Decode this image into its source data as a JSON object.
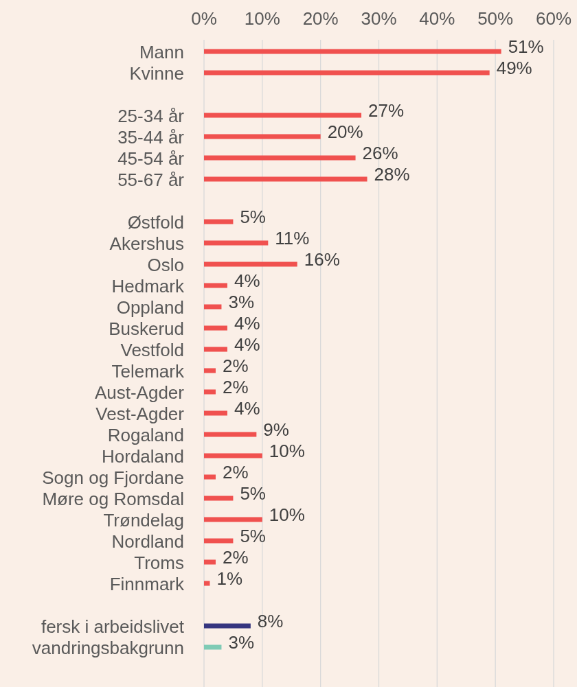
{
  "chart_data": {
    "type": "bar",
    "orientation": "horizontal",
    "categories": [
      "Mann",
      "Kvinne",
      null,
      "25-34 år",
      "35-44 år",
      "45-54 år",
      "55-67 år",
      null,
      "Østfold",
      "Akershus",
      "Oslo",
      "Hedmark",
      "Oppland",
      "Buskerud",
      "Vestfold",
      "Telemark",
      "Aust-Agder",
      "Vest-Agder",
      "Rogaland",
      "Hordaland",
      "Sogn og Fjordane",
      "Møre og Romsdal",
      "Trøndelag",
      "Nordland",
      "Troms",
      "Finnmark",
      null,
      "fersk i arbeidslivet",
      "vandringsbakgrunn"
    ],
    "values": [
      51,
      49,
      null,
      27,
      20,
      26,
      28,
      null,
      5,
      11,
      16,
      4,
      3,
      4,
      4,
      2,
      2,
      4,
      9,
      10,
      2,
      5,
      10,
      5,
      2,
      1,
      null,
      8,
      3
    ],
    "value_labels": [
      "51%",
      "49%",
      null,
      "27%",
      "20%",
      "26%",
      "28%",
      null,
      "5%",
      "11%",
      "16%",
      "4%",
      "3%",
      "4%",
      "4%",
      "2%",
      "2%",
      "4%",
      "9%",
      "10%",
      "2%",
      "5%",
      "10%",
      "5%",
      "2%",
      "1%",
      null,
      "8%",
      "3%"
    ],
    "colors": [
      "#f0514f",
      "#f0514f",
      null,
      "#f0514f",
      "#f0514f",
      "#f0514f",
      "#f0514f",
      null,
      "#f0514f",
      "#f0514f",
      "#f0514f",
      "#f0514f",
      "#f0514f",
      "#f0514f",
      "#f0514f",
      "#f0514f",
      "#f0514f",
      "#f0514f",
      "#f0514f",
      "#f0514f",
      "#f0514f",
      "#f0514f",
      "#f0514f",
      "#f0514f",
      "#f0514f",
      "#f0514f",
      null,
      "#35357f",
      "#7fcbb5"
    ],
    "xlim": [
      0,
      60
    ],
    "xticks": [
      {
        "value": 0,
        "label": "0%"
      },
      {
        "value": 10,
        "label": "10%"
      },
      {
        "value": 20,
        "label": "20%"
      },
      {
        "value": 30,
        "label": "30%"
      },
      {
        "value": 40,
        "label": "40%"
      },
      {
        "value": 50,
        "label": "50%"
      },
      {
        "value": 60,
        "label": "60%"
      }
    ],
    "grid": "x"
  }
}
